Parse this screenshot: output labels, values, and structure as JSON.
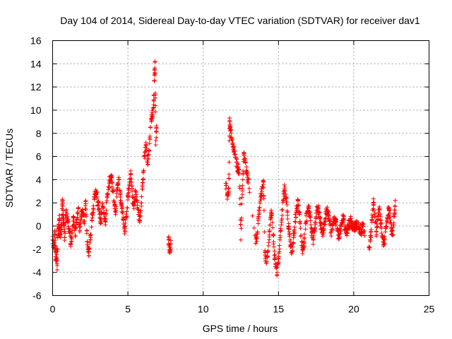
{
  "chart_data": {
    "type": "scatter",
    "title": "Day 104 of 2014, Sidereal Day-to-day VTEC variation (SDTVAR) for receiver dav1",
    "xlabel": "GPS time / hours",
    "ylabel": "SDTVAR / TECUs",
    "xlim": [
      0,
      25
    ],
    "ylim": [
      -6,
      16
    ],
    "xticks": [
      0,
      5,
      10,
      15,
      20,
      25
    ],
    "yticks": [
      -6,
      -4,
      -2,
      0,
      2,
      4,
      6,
      8,
      10,
      12,
      14,
      16
    ],
    "grid": true,
    "marker": "+",
    "marker_color": "#ff0000",
    "trace_points": [
      [
        0.0,
        -1.2
      ],
      [
        0.1,
        -2.0
      ],
      [
        0.15,
        -0.5
      ],
      [
        0.2,
        -3.0
      ],
      [
        0.25,
        -2.2
      ],
      [
        0.3,
        -3.4
      ],
      [
        0.35,
        -1.0
      ],
      [
        0.4,
        -0.2
      ],
      [
        0.45,
        0.5
      ],
      [
        0.5,
        -0.8
      ],
      [
        0.6,
        0.3
      ],
      [
        0.65,
        2.3
      ],
      [
        0.7,
        1.0
      ],
      [
        0.75,
        0.2
      ],
      [
        0.8,
        -1.0
      ],
      [
        0.9,
        1.2
      ],
      [
        1.0,
        0.5
      ],
      [
        1.1,
        -0.2
      ],
      [
        1.2,
        -1.5
      ],
      [
        1.3,
        -0.6
      ],
      [
        1.4,
        0.8
      ],
      [
        1.5,
        -0.8
      ],
      [
        1.6,
        0.6
      ],
      [
        1.7,
        1.5
      ],
      [
        1.8,
        -0.5
      ],
      [
        1.9,
        0.9
      ],
      [
        2.0,
        1.2
      ],
      [
        2.1,
        0.2
      ],
      [
        2.2,
        2.2
      ],
      [
        2.3,
        -1.6
      ],
      [
        2.4,
        -2.2
      ],
      [
        2.5,
        -1.2
      ],
      [
        2.6,
        0.5
      ],
      [
        2.7,
        1.5
      ],
      [
        2.8,
        2.8
      ],
      [
        2.9,
        3.0
      ],
      [
        3.0,
        2.1
      ],
      [
        3.1,
        1.5
      ],
      [
        3.2,
        0.2
      ],
      [
        3.3,
        2.0
      ],
      [
        3.4,
        1.0
      ],
      [
        3.5,
        0.4
      ],
      [
        3.6,
        2.2
      ],
      [
        3.7,
        3.4
      ],
      [
        3.8,
        3.9
      ],
      [
        3.9,
        4.2
      ],
      [
        4.0,
        3.0
      ],
      [
        4.1,
        2.0
      ],
      [
        4.2,
        1.2
      ],
      [
        4.3,
        3.5
      ],
      [
        4.4,
        4.0
      ],
      [
        4.5,
        2.5
      ],
      [
        4.6,
        1.5
      ],
      [
        4.7,
        0.5
      ],
      [
        4.8,
        -0.5
      ],
      [
        4.9,
        0.8
      ],
      [
        5.0,
        2.5
      ],
      [
        5.1,
        3.5
      ],
      [
        5.2,
        4.5
      ],
      [
        5.3,
        2.5
      ],
      [
        5.4,
        1.5
      ],
      [
        5.5,
        3.0
      ],
      [
        5.6,
        2.2
      ],
      [
        5.7,
        1.0
      ],
      [
        5.8,
        0.5
      ],
      [
        5.9,
        2.0
      ],
      [
        6.0,
        4.0
      ],
      [
        6.1,
        6.0
      ],
      [
        6.2,
        7.2
      ],
      [
        6.3,
        5.5
      ],
      [
        6.4,
        6.5
      ],
      [
        6.5,
        8.5
      ],
      [
        6.6,
        9.5
      ],
      [
        6.7,
        10.2
      ],
      [
        6.75,
        12.5
      ],
      [
        6.8,
        14.2
      ],
      [
        6.85,
        7.0
      ],
      [
        6.9,
        8.5
      ],
      [
        7.7,
        -1.2
      ],
      [
        7.75,
        -1.8
      ],
      [
        7.8,
        -2.2
      ],
      [
        7.85,
        -1.5
      ],
      [
        11.5,
        3.7
      ],
      [
        11.6,
        2.6
      ],
      [
        11.7,
        3.0
      ],
      [
        11.75,
        9.0
      ],
      [
        11.8,
        8.2
      ],
      [
        11.9,
        7.5
      ],
      [
        12.0,
        6.8
      ],
      [
        12.1,
        6.2
      ],
      [
        12.2,
        5.5
      ],
      [
        12.3,
        5.0
      ],
      [
        12.4,
        4.5
      ],
      [
        12.5,
        -1.2
      ],
      [
        12.6,
        3.2
      ],
      [
        12.7,
        6.2
      ],
      [
        12.8,
        5.5
      ],
      [
        12.9,
        4.5
      ],
      [
        13.0,
        4.0
      ],
      [
        13.5,
        -1.5
      ],
      [
        13.6,
        -0.5
      ],
      [
        13.7,
        1.0
      ],
      [
        13.8,
        2.5
      ],
      [
        13.9,
        3.0
      ],
      [
        14.0,
        3.8
      ],
      [
        14.1,
        -2.5
      ],
      [
        14.2,
        -3.2
      ],
      [
        14.3,
        -2.2
      ],
      [
        14.4,
        -0.5
      ],
      [
        14.5,
        1.2
      ],
      [
        14.6,
        0.3
      ],
      [
        14.7,
        -1.8
      ],
      [
        14.8,
        -3.5
      ],
      [
        14.9,
        -4.2
      ],
      [
        15.0,
        -2.8
      ],
      [
        15.1,
        -1.2
      ],
      [
        15.2,
        0.5
      ],
      [
        15.3,
        2.2
      ],
      [
        15.4,
        3.2
      ],
      [
        15.5,
        2.5
      ],
      [
        15.6,
        1.2
      ],
      [
        15.7,
        -0.5
      ],
      [
        15.8,
        -1.8
      ],
      [
        15.9,
        -2.2
      ],
      [
        16.0,
        -1.0
      ],
      [
        16.1,
        0.4
      ],
      [
        16.2,
        1.5
      ],
      [
        16.3,
        2.2
      ],
      [
        16.4,
        1.0
      ],
      [
        16.5,
        -0.8
      ],
      [
        16.6,
        -2.0
      ],
      [
        16.7,
        -1.5
      ],
      [
        16.8,
        0.2
      ],
      [
        16.9,
        1.2
      ],
      [
        17.0,
        1.5
      ],
      [
        17.1,
        0.8
      ],
      [
        17.2,
        -0.5
      ],
      [
        17.3,
        -1.2
      ],
      [
        17.4,
        -0.3
      ],
      [
        17.5,
        0.8
      ],
      [
        17.6,
        1.6
      ],
      [
        17.7,
        1.2
      ],
      [
        17.8,
        0.3
      ],
      [
        17.9,
        -0.6
      ],
      [
        18.0,
        -0.2
      ],
      [
        18.1,
        0.5
      ],
      [
        18.2,
        1.4
      ],
      [
        18.3,
        1.0
      ],
      [
        18.4,
        0.4
      ],
      [
        18.5,
        -0.5
      ],
      [
        18.6,
        0.1
      ],
      [
        18.7,
        0.8
      ],
      [
        18.8,
        0.4
      ],
      [
        18.9,
        -0.2
      ],
      [
        19.0,
        -0.8
      ],
      [
        19.1,
        -0.3
      ],
      [
        19.2,
        0.3
      ],
      [
        19.3,
        0.6
      ],
      [
        19.4,
        0.0
      ],
      [
        19.5,
        -0.5
      ],
      [
        19.6,
        -0.2
      ],
      [
        19.7,
        0.2
      ],
      [
        19.8,
        0.4
      ],
      [
        19.9,
        0.1
      ],
      [
        20.0,
        -0.2
      ],
      [
        20.1,
        0.0
      ],
      [
        20.2,
        0.2
      ],
      [
        20.3,
        -0.1
      ],
      [
        20.4,
        -0.3
      ],
      [
        20.5,
        -0.5
      ],
      [
        20.6,
        0.0
      ],
      [
        21.0,
        -1.8
      ],
      [
        21.1,
        -1.2
      ],
      [
        21.2,
        0.5
      ],
      [
        21.3,
        2.0
      ],
      [
        21.4,
        1.0
      ],
      [
        21.5,
        -0.5
      ],
      [
        21.6,
        0.8
      ],
      [
        21.7,
        1.4
      ],
      [
        21.8,
        0.2
      ],
      [
        21.9,
        -1.0
      ],
      [
        22.0,
        -1.6
      ],
      [
        22.1,
        -0.5
      ],
      [
        22.2,
        0.5
      ],
      [
        22.3,
        1.5
      ],
      [
        22.4,
        0.8
      ],
      [
        22.5,
        -0.2
      ],
      [
        22.6,
        -0.8
      ],
      [
        22.7,
        1.0
      ],
      [
        22.75,
        2.2
      ]
    ]
  }
}
